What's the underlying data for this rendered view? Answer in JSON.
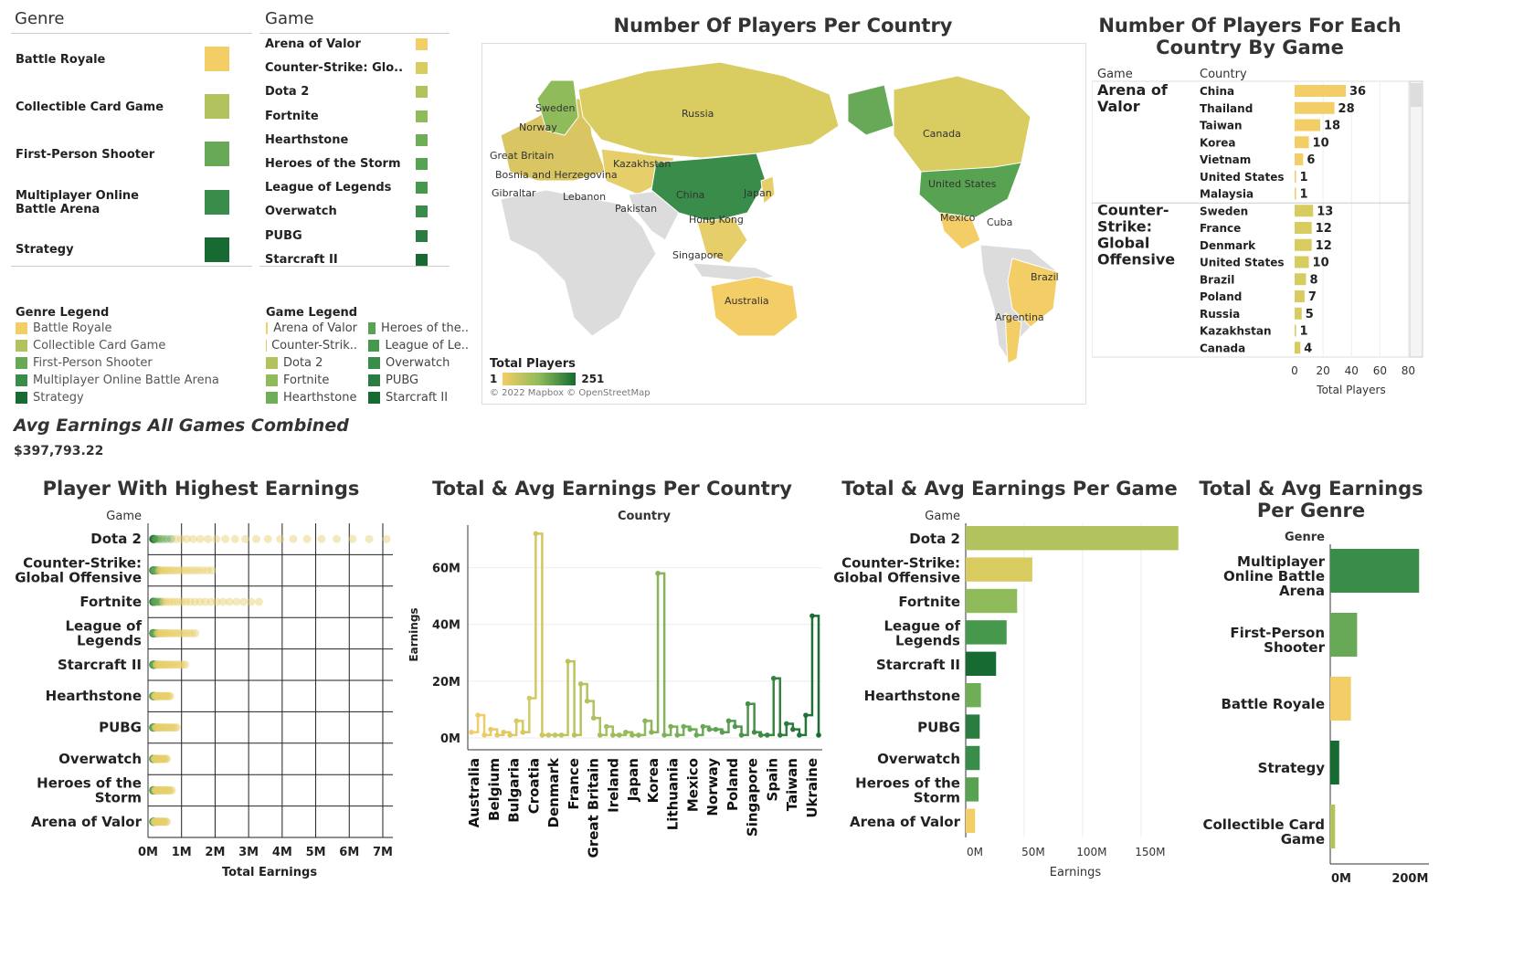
{
  "colors": {
    "Battle Royale": "#f3cd66",
    "Collectible Card Game": "#b2c25c",
    "First-Person Shooter": "#67a957",
    "Multiplayer Online Battle Arena": "#3a8c4a",
    "Strategy": "#166a32",
    "Arena of Valor": "#f3cd66",
    "Counter-Strike: Global Offensive": "#d8cc60",
    "Dota 2": "#b2c25c",
    "Fortnite": "#8fbb5a",
    "Hearthstone": "#6fae57",
    "Heroes of the Storm": "#58a352",
    "League of Legends": "#46984d",
    "Overwatch": "#3a8c4a",
    "PUBG": "#2b7c40",
    "Starcraft II": "#166a32"
  },
  "genre_table": {
    "header": "Genre",
    "rows": [
      "Battle Royale",
      "Collectible Card Game",
      "First-Person Shooter",
      "Multiplayer Online Battle Arena",
      "Strategy"
    ]
  },
  "game_table": {
    "header": "Game",
    "rows": [
      "Arena of Valor",
      "Counter-Strike: Glo..",
      "Dota 2",
      "Fortnite",
      "Hearthstone",
      "Heroes of the Storm",
      "League of Legends",
      "Overwatch",
      "PUBG",
      "Starcraft II"
    ],
    "color_keys": [
      "Arena of Valor",
      "Counter-Strike: Global Offensive",
      "Dota 2",
      "Fortnite",
      "Hearthstone",
      "Heroes of the Storm",
      "League of Legends",
      "Overwatch",
      "PUBG",
      "Starcraft II"
    ]
  },
  "genre_legend": {
    "title": "Genre Legend",
    "items": [
      "Battle Royale",
      "Collectible Card Game",
      "First-Person Shooter",
      "Multiplayer Online Battle Arena",
      "Strategy"
    ]
  },
  "game_legend": {
    "title": "Game Legend",
    "col1": [
      "Arena of Valor",
      "Counter-Strik..",
      "Dota 2",
      "Fortnite",
      "Hearthstone"
    ],
    "col1_keys": [
      "Arena of Valor",
      "Counter-Strike: Global Offensive",
      "Dota 2",
      "Fortnite",
      "Hearthstone"
    ],
    "col2": [
      "Heroes of the..",
      "League of Le..",
      "Overwatch",
      "PUBG",
      "Starcraft II"
    ],
    "col2_keys": [
      "Heroes of the Storm",
      "League of Legends",
      "Overwatch",
      "PUBG",
      "Starcraft II"
    ]
  },
  "map": {
    "title": "Number Of Players Per Country",
    "legend_title": "Total Players",
    "legend_min": "1",
    "legend_max": "251",
    "attribution": "© 2022 Mapbox © OpenStreetMap",
    "labels": [
      "Russia",
      "Sweden",
      "Norway",
      "Great Britain",
      "Bosnia and Herzegovina",
      "Gibraltar",
      "Lebanon",
      "Kazakhstan",
      "Pakistan",
      "China",
      "Japan",
      "Hong Kong",
      "Singapore",
      "Australia",
      "Canada",
      "United States",
      "Mexico",
      "Cuba",
      "Brazil",
      "Argentina"
    ]
  },
  "avg_earnings": {
    "title": "Avg Earnings All Games Combined",
    "value": "$397,793.22"
  },
  "chart_data": [
    {
      "type": "bar",
      "title": "Number Of Players For Each Country By Game",
      "row_header": "Game",
      "col_header": "Country",
      "xlabel": "Total Players",
      "xlim": [
        0,
        90
      ],
      "xticks": [
        "0",
        "20",
        "40",
        "60",
        "80"
      ],
      "groups": [
        {
          "game": "Arena of Valor",
          "countries": [
            "China",
            "Thailand",
            "Taiwan",
            "Korea",
            "Vietnam",
            "United States",
            "Malaysia"
          ],
          "values": [
            36,
            28,
            18,
            10,
            6,
            1,
            1
          ],
          "labels": [
            "36",
            "28",
            "18",
            "10",
            "6",
            "1",
            "1"
          ]
        },
        {
          "game": "Counter-Strike: Global Offensive",
          "countries": [
            "Sweden",
            "France",
            "Denmark",
            "United States",
            "Brazil",
            "Poland",
            "Russia",
            "Kazakhstan",
            "Canada"
          ],
          "values": [
            13,
            12,
            12,
            10,
            8,
            7,
            5,
            1,
            4
          ],
          "labels": [
            "13",
            "12",
            "12",
            "10",
            "8",
            "7",
            "5",
            "1",
            "4"
          ]
        }
      ]
    },
    {
      "type": "scatter",
      "title": "Player With Highest Earnings",
      "row_header": "Game",
      "xlabel": "Total Earnings",
      "xlim": [
        0,
        7.3
      ],
      "xticks": [
        "0M",
        "1M",
        "2M",
        "3M",
        "4M",
        "5M",
        "6M",
        "7M"
      ],
      "games": [
        "Dota 2",
        "Counter-Strike: Global Offensive",
        "Fortnite",
        "League of Legends",
        "Starcraft II",
        "Hearthstone",
        "PUBG",
        "Overwatch",
        "Heroes of the Storm",
        "Arena of Valor"
      ],
      "row_labels": [
        "Dota 2",
        "Counter-Strike:\nGlobal Offensive",
        "Fortnite",
        "League of\nLegends",
        "Starcraft II",
        "Hearthstone",
        "PUBG",
        "Overwatch",
        "Heroes of the\nStorm",
        "Arena of Valor"
      ],
      "points_max_musd": [
        7.0,
        1.8,
        3.2,
        1.3,
        1.0,
        0.55,
        0.75,
        0.45,
        0.6,
        0.45
      ]
    },
    {
      "type": "line",
      "title": "Total & Avg Earnings Per Country",
      "top_label": "Country",
      "ylabel": "Earnings",
      "ylim": [
        0,
        75
      ],
      "yticks": [
        "0M",
        "20M",
        "40M",
        "60M"
      ],
      "xtick_labels": [
        "Australia",
        "Belgium",
        "Bulgaria",
        "Croatia",
        "Denmark",
        "France",
        "Great Britain",
        "Ireland",
        "Japan",
        "Korea",
        "Lithuania",
        "Mexico",
        "Norway",
        "Poland",
        "Singapore",
        "Spain",
        "Taiwan",
        "Ukraine"
      ],
      "values_musd": [
        2,
        8,
        1,
        3,
        1,
        2,
        1,
        6,
        2,
        14,
        72,
        1,
        1,
        1,
        1,
        27,
        1,
        19,
        13,
        7,
        1,
        4,
        1,
        1,
        2,
        1,
        1,
        6,
        2,
        58,
        1,
        4,
        1,
        4,
        3,
        1,
        4,
        3,
        3,
        2,
        6,
        4,
        1,
        12,
        2,
        1,
        1,
        21,
        1,
        5,
        3,
        1,
        8,
        43,
        1
      ]
    },
    {
      "type": "bar",
      "title": "Total & Avg Earnings Per Game",
      "row_header": "Game",
      "xlabel": "Earnings",
      "xlim": [
        0,
        190
      ],
      "xticks": [
        "0M",
        "50M",
        "100M",
        "150M"
      ],
      "categories": [
        "Dota 2",
        "Counter-Strike:\nGlobal Offensive",
        "Fortnite",
        "League of\nLegends",
        "Starcraft II",
        "Hearthstone",
        "PUBG",
        "Overwatch",
        "Heroes of the\nStorm",
        "Arena of Valor"
      ],
      "color_keys": [
        "Dota 2",
        "Counter-Strike: Global Offensive",
        "Fortnite",
        "League of Legends",
        "Starcraft II",
        "Hearthstone",
        "PUBG",
        "Overwatch",
        "Heroes of the Storm",
        "Arena of Valor"
      ],
      "values_musd": [
        182,
        57,
        44,
        35,
        26,
        13,
        12,
        12,
        11,
        8
      ]
    },
    {
      "type": "bar",
      "title": "Total & Avg Earnings Per Genre",
      "row_header": "Genre",
      "xlabel": "Earnings",
      "xlim": [
        0,
        260
      ],
      "xticks": [
        "0M",
        "200M"
      ],
      "categories": [
        "Multiplayer\nOnline Battle\nArena",
        "First-Person\nShooter",
        "Battle Royale",
        "Strategy",
        "Collectible Card\nGame"
      ],
      "color_keys": [
        "Multiplayer Online Battle Arena",
        "First-Person Shooter",
        "Battle Royale",
        "Strategy",
        "Collectible Card Game"
      ],
      "values_musd": [
        258,
        78,
        60,
        26,
        14
      ]
    }
  ]
}
